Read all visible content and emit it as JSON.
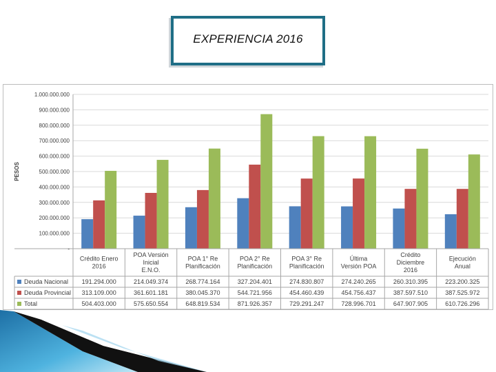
{
  "slide": {
    "title": "EXPERIENCIA 2016"
  },
  "colors": {
    "title_border": "#1f6e86",
    "deuda_nacional": "#4f81bd",
    "deuda_provincial": "#c0504d",
    "total": "#9bbb59"
  },
  "chart_data": {
    "type": "bar",
    "title": "",
    "xlabel": "",
    "ylabel": "PESOS",
    "ylim": [
      0,
      1000000000
    ],
    "yticks": [
      "-",
      "100.000.000",
      "200.000.000",
      "300.000.000",
      "400.000.000",
      "500.000.000",
      "600.000.000",
      "700.000.000",
      "800.000.000",
      "900.000.000",
      "1.000.000.000"
    ],
    "grid": true,
    "legend": "data-table",
    "categories": [
      "Crédito Enero 2016",
      "POA Versión Inicial E.N.O.",
      "POA 1° Re Planificación",
      "POA 2° Re Planificación",
      "POA 3° Re Planificación",
      "Última Versión POA",
      "Crédito Diciembre 2016",
      "Ejecución Anual"
    ],
    "series": [
      {
        "name": "Deuda Nacional",
        "values": [
          191294000,
          214049374,
          268774164,
          327204401,
          274830807,
          274240265,
          260310395,
          223200325
        ],
        "labels": [
          "191.294.000",
          "214.049.374",
          "268.774.164",
          "327.204.401",
          "274.830.807",
          "274.240.265",
          "260.310.395",
          "223.200.325"
        ]
      },
      {
        "name": "Deuda Provincial",
        "values": [
          313109000,
          361601181,
          380045370,
          544721956,
          454460439,
          454756437,
          387597510,
          387525972
        ],
        "labels": [
          "313.109.000",
          "361.601.181",
          "380.045.370",
          "544.721.956",
          "454.460.439",
          "454.756.437",
          "387.597.510",
          "387.525.972"
        ]
      },
      {
        "name": "Total",
        "values": [
          504403000,
          575650554,
          648819534,
          871926357,
          729291247,
          728996701,
          647907905,
          610726296
        ],
        "labels": [
          "504.403.000",
          "575.650.554",
          "648.819.534",
          "871.926.357",
          "729.291.247",
          "728.996.701",
          "647.907.905",
          "610.726.296"
        ]
      }
    ]
  }
}
